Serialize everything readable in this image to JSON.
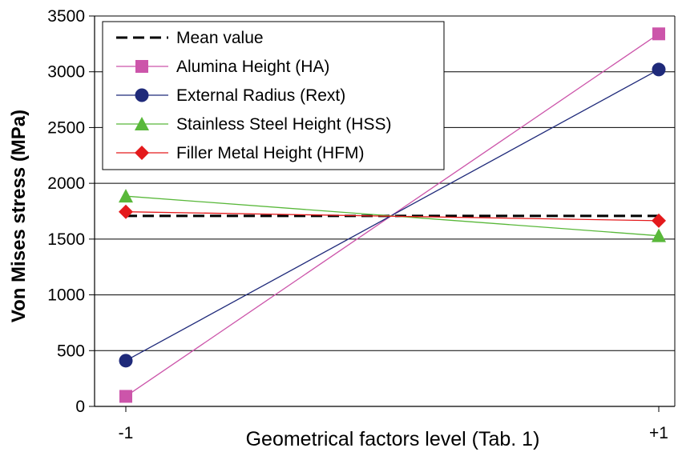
{
  "chart_data": {
    "type": "line",
    "xlabel": "Geometrical factors level (Tab. 1)",
    "ylabel": "Von Mises stress (MPa)",
    "categories": [
      "-1",
      "+1"
    ],
    "ylim": [
      0,
      3500
    ],
    "yticks": [
      "0",
      "500",
      "1000",
      "1500",
      "2000",
      "2500",
      "3000",
      "3500"
    ],
    "grid": "horizontal",
    "legend_position": "top-left",
    "series": [
      {
        "name": "Mean value",
        "values": [
          1708,
          1708
        ],
        "color": "#000000",
        "dash": true,
        "marker": "none"
      },
      {
        "name": "Alumina Height (HA)",
        "values": [
          90,
          3340
        ],
        "color": "#cc55aa",
        "marker": "square"
      },
      {
        "name": "External Radius (Rext)",
        "values": [
          410,
          3020
        ],
        "color": "#1f2a7a",
        "marker": "circle"
      },
      {
        "name": "Stainless Steel Height (HSS)",
        "values": [
          1885,
          1530
        ],
        "color": "#59b83a",
        "marker": "triangle"
      },
      {
        "name": "Filler Metal Height (HFM)",
        "values": [
          1745,
          1665
        ],
        "color": "#e41a1c",
        "marker": "diamond"
      }
    ]
  }
}
